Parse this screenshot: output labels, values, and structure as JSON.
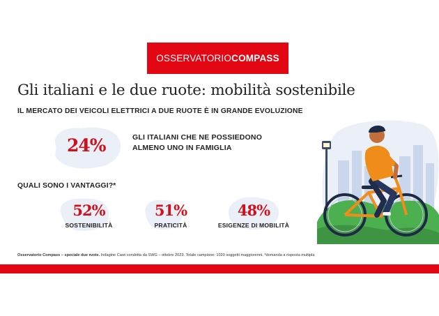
{
  "header": {
    "brand_light": "OSSERVATORIO",
    "brand_bold": "COMPASS"
  },
  "title": "Gli italiani e le due ruote: mobilità sostenibile",
  "subtitle": "IL MERCATO DEI VEICOLI ELETTRICI A DUE RUOTE È IN GRANDE EVOLUZIONE",
  "main_stat": {
    "value": "24%",
    "line1": "GLI ITALIANI CHE NE POSSIEDONO",
    "line2": "ALMENO UNO IN FAMIGLIA"
  },
  "advantages": {
    "question": "QUALI SONO I VANTAGGI?*",
    "items": [
      {
        "value": "52%",
        "label": "SOSTENIBILITÀ"
      },
      {
        "value": "51%",
        "label": "PRATICITÀ"
      },
      {
        "value": "48%",
        "label": "ESIGENZE DI MOBILITÀ"
      }
    ]
  },
  "footnote": {
    "bold": "Osservatorio Compass – speciale due ruote.",
    "regular": " Indagine Cawi condotta da SWG – ottobre 2023. Totale campione: 1020 soggetti maggiorenni. *domanda a risposta multipla"
  },
  "colors": {
    "brand_red": "#e30613",
    "stat_red": "#d0111b",
    "blob_blue": "#eaeff8"
  }
}
